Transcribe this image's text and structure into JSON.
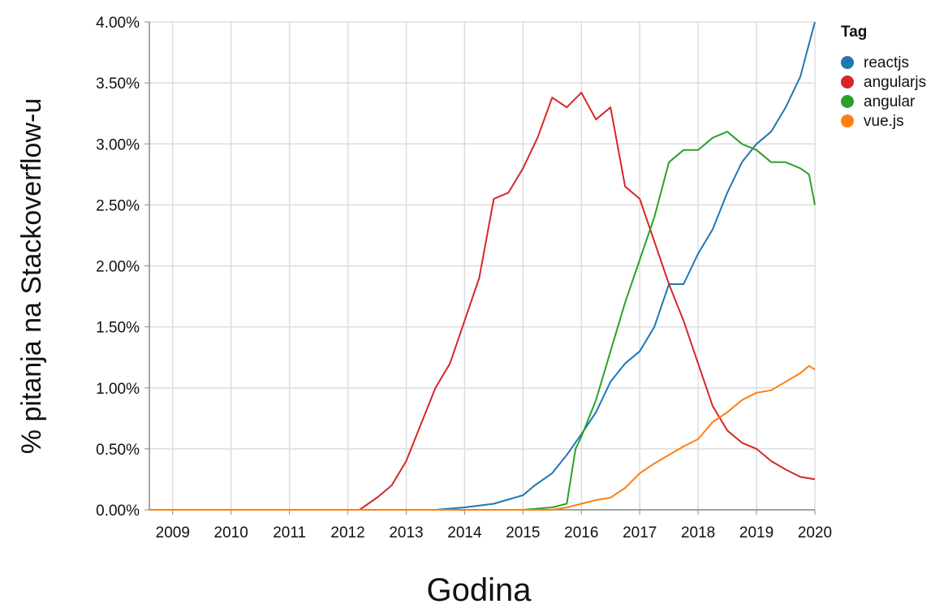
{
  "chart_data": {
    "type": "line",
    "xlabel": "Godina",
    "ylabel": "% pitanja na Stackoverflow-u",
    "xlim": [
      2008.6,
      2020.0
    ],
    "ylim": [
      0,
      4.0
    ],
    "x_ticks": [
      "2009",
      "2010",
      "2011",
      "2012",
      "2013",
      "2014",
      "2015",
      "2016",
      "2017",
      "2018",
      "2019",
      "2020"
    ],
    "y_ticks": [
      "0.00%",
      "0.50%",
      "1.00%",
      "1.50%",
      "2.00%",
      "2.50%",
      "3.00%",
      "3.50%",
      "4.00%"
    ],
    "grid": true,
    "legend": {
      "title": "Tag",
      "position": "top-right"
    },
    "series": [
      {
        "name": "reactjs",
        "color": "#1f77b4",
        "x": [
          2008.6,
          2013.5,
          2014.0,
          2014.5,
          2015.0,
          2015.2,
          2015.5,
          2015.75,
          2016.0,
          2016.25,
          2016.5,
          2016.75,
          2017.0,
          2017.25,
          2017.5,
          2017.75,
          2018.0,
          2018.25,
          2018.5,
          2018.75,
          2019.0,
          2019.25,
          2019.5,
          2019.75,
          2020.0
        ],
        "y": [
          0,
          0,
          0.02,
          0.05,
          0.12,
          0.2,
          0.3,
          0.45,
          0.62,
          0.8,
          1.05,
          1.2,
          1.3,
          1.5,
          1.85,
          1.85,
          2.1,
          2.3,
          2.6,
          2.85,
          3.0,
          3.1,
          3.3,
          3.55,
          4.0
        ]
      },
      {
        "name": "angularjs",
        "color": "#d62728",
        "x": [
          2008.6,
          2012.2,
          2012.5,
          2012.75,
          2013.0,
          2013.25,
          2013.5,
          2013.75,
          2014.0,
          2014.25,
          2014.5,
          2014.75,
          2015.0,
          2015.25,
          2015.5,
          2015.75,
          2016.0,
          2016.25,
          2016.5,
          2016.75,
          2017.0,
          2017.25,
          2017.5,
          2017.75,
          2018.0,
          2018.25,
          2018.5,
          2018.75,
          2019.0,
          2019.25,
          2019.5,
          2019.75,
          2020.0
        ],
        "y": [
          0,
          0,
          0.1,
          0.2,
          0.4,
          0.7,
          1.0,
          1.2,
          1.55,
          1.9,
          2.55,
          2.6,
          2.8,
          3.05,
          3.38,
          3.3,
          3.42,
          3.2,
          3.3,
          2.65,
          2.55,
          2.2,
          1.85,
          1.55,
          1.2,
          0.85,
          0.65,
          0.55,
          0.5,
          0.4,
          0.33,
          0.27,
          0.25
        ]
      },
      {
        "name": "angular",
        "color": "#2ca02c",
        "x": [
          2008.6,
          2015.0,
          2015.5,
          2015.75,
          2015.9,
          2016.0,
          2016.25,
          2016.5,
          2016.75,
          2017.0,
          2017.25,
          2017.5,
          2017.75,
          2018.0,
          2018.25,
          2018.5,
          2018.75,
          2019.0,
          2019.25,
          2019.5,
          2019.75,
          2019.9,
          2020.0
        ],
        "y": [
          0,
          0,
          0.02,
          0.05,
          0.5,
          0.6,
          0.9,
          1.3,
          1.7,
          2.05,
          2.4,
          2.85,
          2.95,
          2.95,
          3.05,
          3.1,
          3.0,
          2.95,
          2.85,
          2.85,
          2.8,
          2.75,
          2.5
        ]
      },
      {
        "name": "vue.js",
        "color": "#ff7f0e",
        "x": [
          2008.6,
          2015.5,
          2015.75,
          2016.0,
          2016.25,
          2016.5,
          2016.75,
          2017.0,
          2017.25,
          2017.5,
          2017.75,
          2018.0,
          2018.25,
          2018.5,
          2018.75,
          2019.0,
          2019.25,
          2019.5,
          2019.75,
          2019.9,
          2020.0
        ],
        "y": [
          0,
          0,
          0.02,
          0.05,
          0.08,
          0.1,
          0.18,
          0.3,
          0.38,
          0.45,
          0.52,
          0.58,
          0.72,
          0.8,
          0.9,
          0.96,
          0.98,
          1.05,
          1.12,
          1.18,
          1.15
        ]
      }
    ]
  }
}
